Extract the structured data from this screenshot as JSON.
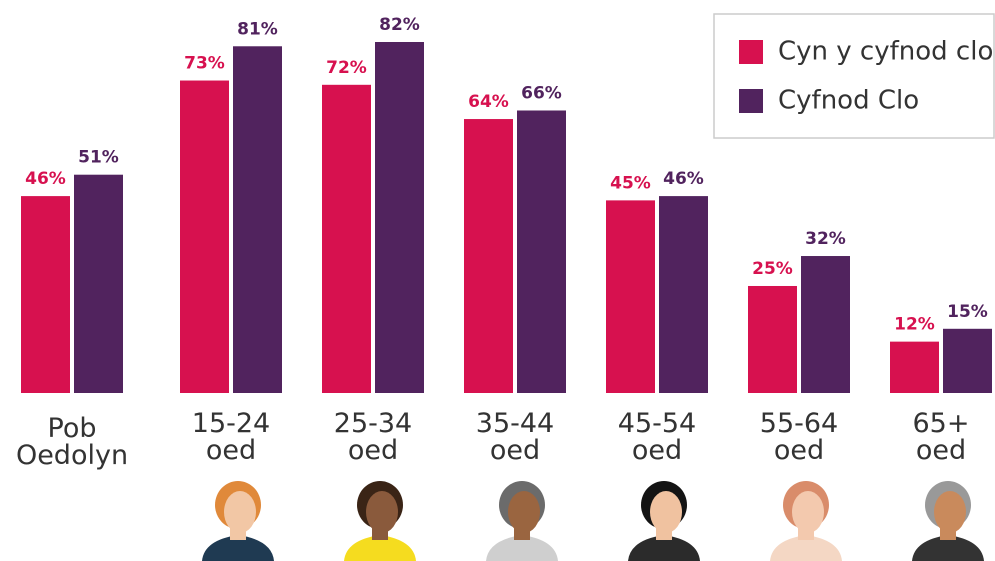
{
  "chart_data": {
    "type": "bar",
    "categories": [
      "Pob Oedolyn",
      "15-24 oed",
      "25-34 oed",
      "35-44 oed",
      "45-54 oed",
      "55-64 oed",
      "65+ oed"
    ],
    "series": [
      {
        "name": "Cyn y cyfnod clo",
        "color": "#d7114f",
        "values": [
          46,
          73,
          72,
          64,
          45,
          25,
          12
        ],
        "value_labels": [
          "46%",
          "73%",
          "72%",
          "64%",
          "45%",
          "25%",
          "12%"
        ]
      },
      {
        "name": "Cyfnod Clo",
        "color": "#51235e",
        "values": [
          51,
          81,
          82,
          66,
          46,
          32,
          15
        ],
        "value_labels": [
          "51%",
          "81%",
          "82%",
          "66%",
          "46%",
          "32%",
          "15%"
        ]
      }
    ],
    "legend": "top-right"
  }
}
